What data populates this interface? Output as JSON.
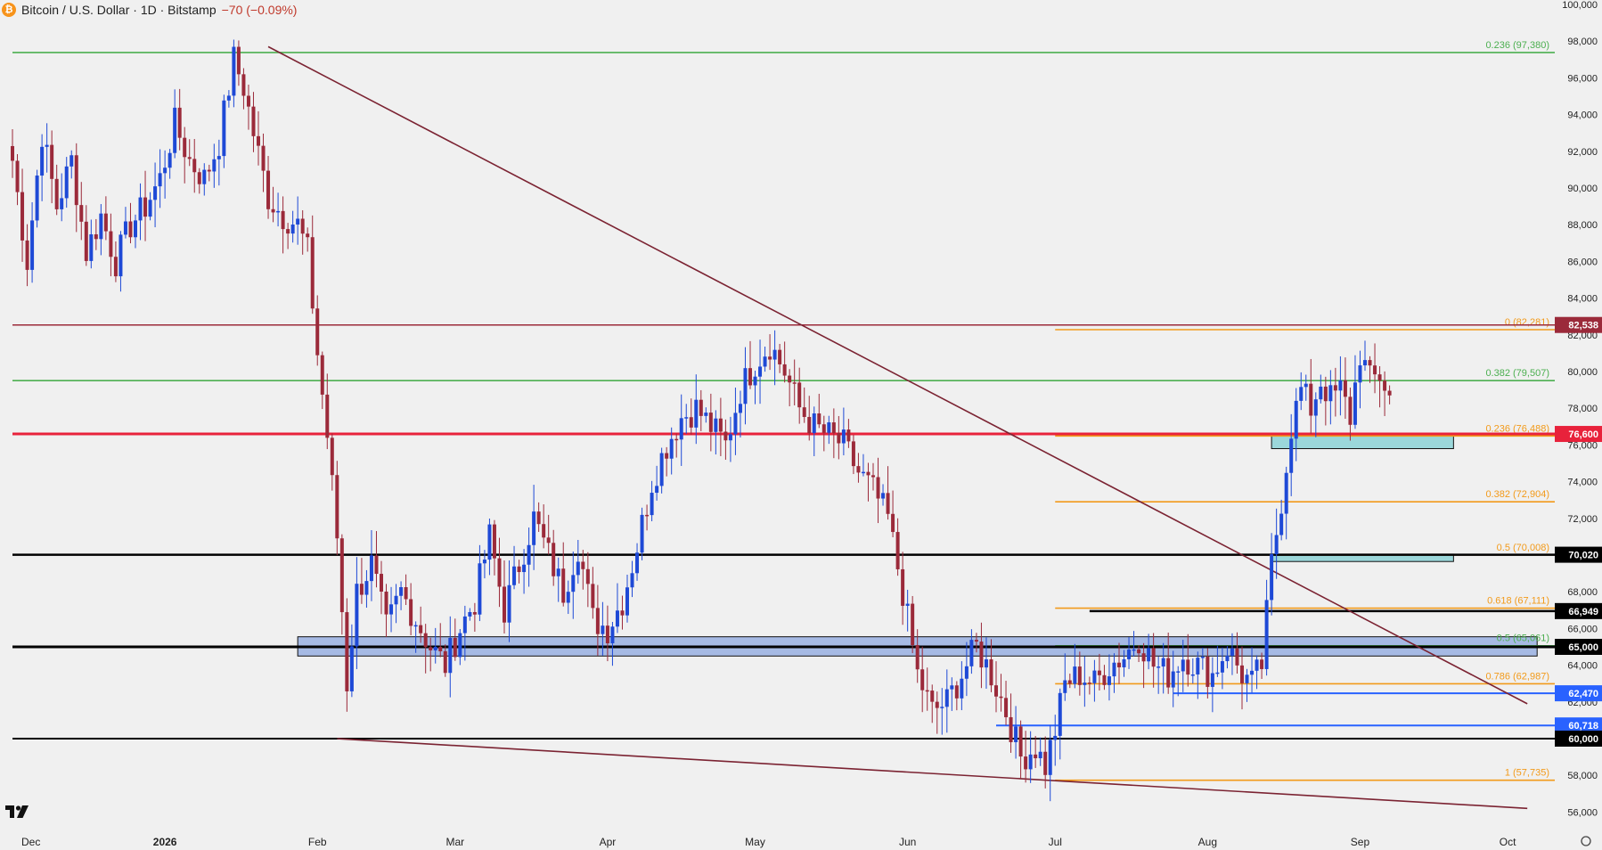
{
  "header": {
    "symbol_title": "Bitcoin / U.S. Dollar · 1D · Bitstamp",
    "change_text": "−70 (−0.09%)",
    "icon": "bitcoin-icon"
  },
  "colors": {
    "background": "#f0f0f0",
    "bull": "#1e49d6",
    "bear": "#9b2a3a",
    "fib_orange": "#f29a1a",
    "fib_green": "#4caf50",
    "trendline": "#7b2332",
    "support_red": "#e8223b",
    "black_level": "#000000",
    "blue_level": "#2962ff",
    "zone_blue": "#8ea8e0",
    "zone_teal": "#7fcfd3"
  },
  "chart_data": {
    "type": "candlestick",
    "title": "Bitcoin / U.S. Dollar · 1D · Bitstamp",
    "ylim": [
      55000,
      100000
    ],
    "y_ticks": [
      56000,
      58000,
      60000,
      62000,
      64000,
      66000,
      68000,
      70000,
      72000,
      74000,
      76000,
      78000,
      80000,
      82000,
      84000,
      86000,
      88000,
      90000,
      92000,
      94000,
      96000,
      98000,
      100000
    ],
    "y_tick_labels": [
      "56,000",
      "58,000",
      "60,000",
      "62,000",
      "64,000",
      "66,000",
      "68,000",
      "70,000",
      "72,000",
      "74,000",
      "76,000",
      "78,000",
      "80,000",
      "82,000",
      "84,000",
      "86,000",
      "88,000",
      "90,000",
      "92,000",
      "94,000",
      "96,000",
      "98,000",
      "100,000"
    ],
    "x_ticks": [
      {
        "label": "Dec",
        "day": 0
      },
      {
        "label": "2026",
        "day": 31
      },
      {
        "label": "Feb",
        "day": 62
      },
      {
        "label": "Mar",
        "day": 90
      },
      {
        "label": "Apr",
        "day": 121
      },
      {
        "label": "May",
        "day": 151
      },
      {
        "label": "Jun",
        "day": 182
      },
      {
        "label": "Jul",
        "day": 212
      },
      {
        "label": "Aug",
        "day": 243
      },
      {
        "label": "Sep",
        "day": 274
      },
      {
        "label": "Oct",
        "day": 304
      }
    ],
    "candle_anchors": [
      [
        0,
        91500
      ],
      [
        3,
        86000
      ],
      [
        6,
        93000
      ],
      [
        9,
        89000
      ],
      [
        12,
        91500
      ],
      [
        15,
        86500
      ],
      [
        18,
        88500
      ],
      [
        21,
        86000
      ],
      [
        24,
        88000
      ],
      [
        27,
        89000
      ],
      [
        30,
        90500
      ],
      [
        33,
        93500
      ],
      [
        36,
        91500
      ],
      [
        39,
        90500
      ],
      [
        42,
        92500
      ],
      [
        45,
        97000
      ],
      [
        47,
        95500
      ],
      [
        49,
        93000
      ],
      [
        52,
        89500
      ],
      [
        55,
        88500
      ],
      [
        58,
        88000
      ],
      [
        60,
        86500
      ],
      [
        62,
        81000
      ],
      [
        64,
        76500
      ],
      [
        66,
        71000
      ],
      [
        68,
        63000
      ],
      [
        70,
        68000
      ],
      [
        73,
        69500
      ],
      [
        76,
        66000
      ],
      [
        79,
        68000
      ],
      [
        82,
        66500
      ],
      [
        85,
        65000
      ],
      [
        88,
        64000
      ],
      [
        91,
        66000
      ],
      [
        94,
        67500
      ],
      [
        97,
        71000
      ],
      [
        100,
        67000
      ],
      [
        103,
        69500
      ],
      [
        106,
        72000
      ],
      [
        109,
        70000
      ],
      [
        112,
        68000
      ],
      [
        115,
        70500
      ],
      [
        118,
        66500
      ],
      [
        121,
        66000
      ],
      [
        124,
        67500
      ],
      [
        127,
        70500
      ],
      [
        130,
        74000
      ],
      [
        133,
        76000
      ],
      [
        136,
        77500
      ],
      [
        139,
        78000
      ],
      [
        142,
        77000
      ],
      [
        145,
        76000
      ],
      [
        148,
        79000
      ],
      [
        151,
        80500
      ],
      [
        154,
        81500
      ],
      [
        157,
        80000
      ],
      [
        160,
        78000
      ],
      [
        163,
        77000
      ],
      [
        166,
        76500
      ],
      [
        169,
        76000
      ],
      [
        172,
        74500
      ],
      [
        175,
        73500
      ],
      [
        178,
        72000
      ],
      [
        181,
        68000
      ],
      [
        184,
        63500
      ],
      [
        187,
        61500
      ],
      [
        190,
        62000
      ],
      [
        193,
        63500
      ],
      [
        196,
        65000
      ],
      [
        199,
        63500
      ],
      [
        202,
        61500
      ],
      [
        205,
        59000
      ],
      [
        208,
        59500
      ],
      [
        210,
        58500
      ],
      [
        212,
        60500
      ],
      [
        214,
        63000
      ],
      [
        217,
        63500
      ],
      [
        220,
        63000
      ],
      [
        223,
        64000
      ],
      [
        226,
        64500
      ],
      [
        229,
        65500
      ],
      [
        232,
        64000
      ],
      [
        235,
        63500
      ],
      [
        238,
        64500
      ],
      [
        241,
        64000
      ],
      [
        244,
        63500
      ],
      [
        247,
        65000
      ],
      [
        250,
        63500
      ],
      [
        252,
        63000
      ],
      [
        254,
        64000
      ],
      [
        256,
        69500
      ],
      [
        258,
        73000
      ],
      [
        260,
        77000
      ],
      [
        262,
        79000
      ],
      [
        264,
        78000
      ],
      [
        266,
        79500
      ],
      [
        268,
        78500
      ],
      [
        270,
        79000
      ],
      [
        272,
        77500
      ],
      [
        274,
        81000
      ],
      [
        276,
        79500
      ],
      [
        278,
        79800
      ],
      [
        280,
        78700
      ]
    ],
    "last_close": 78700,
    "trendlines": [
      {
        "from": [
          52,
          97700
        ],
        "to": [
          308,
          61900
        ]
      },
      {
        "from": [
          66,
          60000
        ],
        "to": [
          308,
          56200
        ]
      }
    ],
    "horizontal_levels": [
      {
        "price": 82538,
        "label": "82,538",
        "color_key": "bear",
        "width": 1.5,
        "from_day": 0
      },
      {
        "price": 76600,
        "label": "76,600",
        "color_key": "support_red",
        "width": 3,
        "from_day": 0
      },
      {
        "price": 70020,
        "label": "70,020",
        "color_key": "black_level",
        "width": 2.5,
        "from_day": 0
      },
      {
        "price": 66949,
        "label": "66,949",
        "color_key": "black_level",
        "width": 2.5,
        "from_day": 219
      },
      {
        "price": 65000,
        "label": "65,000",
        "color_key": "black_level",
        "width": 3,
        "from_day": 0
      },
      {
        "price": 62470,
        "label": "62,470",
        "color_key": "blue_level",
        "width": 2,
        "from_day": 236
      },
      {
        "price": 60718,
        "label": "60,718",
        "color_key": "blue_level",
        "width": 2,
        "from_day": 200
      },
      {
        "price": 60000,
        "label": "60,000",
        "color_key": "black_level",
        "width": 2,
        "from_day": 0
      }
    ],
    "fib_levels": [
      {
        "price": 97380,
        "label": "0.236 (97,380)",
        "color_key": "fib_green",
        "from_day": 0
      },
      {
        "price": 82281,
        "label": "0 (82,281)",
        "color_key": "fib_orange",
        "from_day": 212
      },
      {
        "price": 79507,
        "label": "0.382 (79,507)",
        "color_key": "fib_green",
        "from_day": 0
      },
      {
        "price": 76488,
        "label": "0.236 (76,488)",
        "color_key": "fib_orange",
        "from_day": 212
      },
      {
        "price": 72904,
        "label": "0.382 (72,904)",
        "color_key": "fib_orange",
        "from_day": 212
      },
      {
        "price": 70008,
        "label": "0.5 (70,008)",
        "color_key": "fib_orange",
        "from_day": 212
      },
      {
        "price": 67111,
        "label": "0.618 (67,111)",
        "color_key": "fib_orange",
        "from_day": 212
      },
      {
        "price": 65061,
        "label": "0.5 (65,061)",
        "color_key": "fib_green",
        "from_day": 212
      },
      {
        "price": 62987,
        "label": "0.786 (62,987)",
        "color_key": "fib_orange",
        "from_day": 212
      },
      {
        "price": 57735,
        "label": "1 (57,735)",
        "color_key": "fib_orange",
        "from_day": 212
      }
    ],
    "zones": [
      {
        "from_day": 58,
        "to_day": 310,
        "low": 64500,
        "high": 65550,
        "color_key": "zone_blue"
      },
      {
        "from_day": 256,
        "to_day": 293,
        "low": 75800,
        "high": 76600,
        "color_key": "zone_teal"
      },
      {
        "from_day": 256,
        "to_day": 293,
        "low": 69650,
        "high": 70050,
        "color_key": "zone_teal"
      }
    ]
  },
  "bottom_icons": {
    "logo": "tradingview-logo-icon",
    "settings": "gear-icon"
  }
}
